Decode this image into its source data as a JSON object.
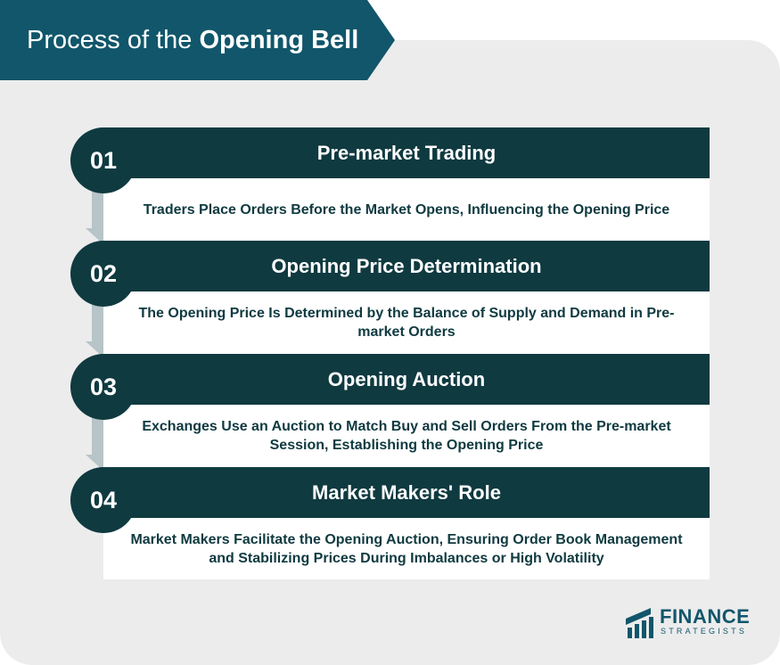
{
  "header": {
    "title_regular": "Process of the",
    "title_bold": "Opening Bell"
  },
  "steps": [
    {
      "number": "01",
      "title": "Pre-market Trading",
      "description": "Traders Place Orders Before the Market Opens, Influencing the Opening Price"
    },
    {
      "number": "02",
      "title": "Opening Price Determination",
      "description": "The Opening Price Is Determined by the Balance of Supply and Demand in Pre-market Orders"
    },
    {
      "number": "03",
      "title": "Opening Auction",
      "description": "Exchanges Use an Auction to Match Buy and Sell Orders From the Pre-market Session, Establishing the Opening Price"
    },
    {
      "number": "04",
      "title": "Market Makers' Role",
      "description": "Market Makers Facilitate the Opening Auction, Ensuring Order Book Management and Stabilizing Prices During Imbalances or High Volatility"
    }
  ],
  "logo": {
    "name": "FINANCE",
    "sub": "STRATEGISTS"
  },
  "colors": {
    "banner": "#11566b",
    "dark": "#0f3a40",
    "connector": "#b7c4c8",
    "panel": "#ececec"
  }
}
